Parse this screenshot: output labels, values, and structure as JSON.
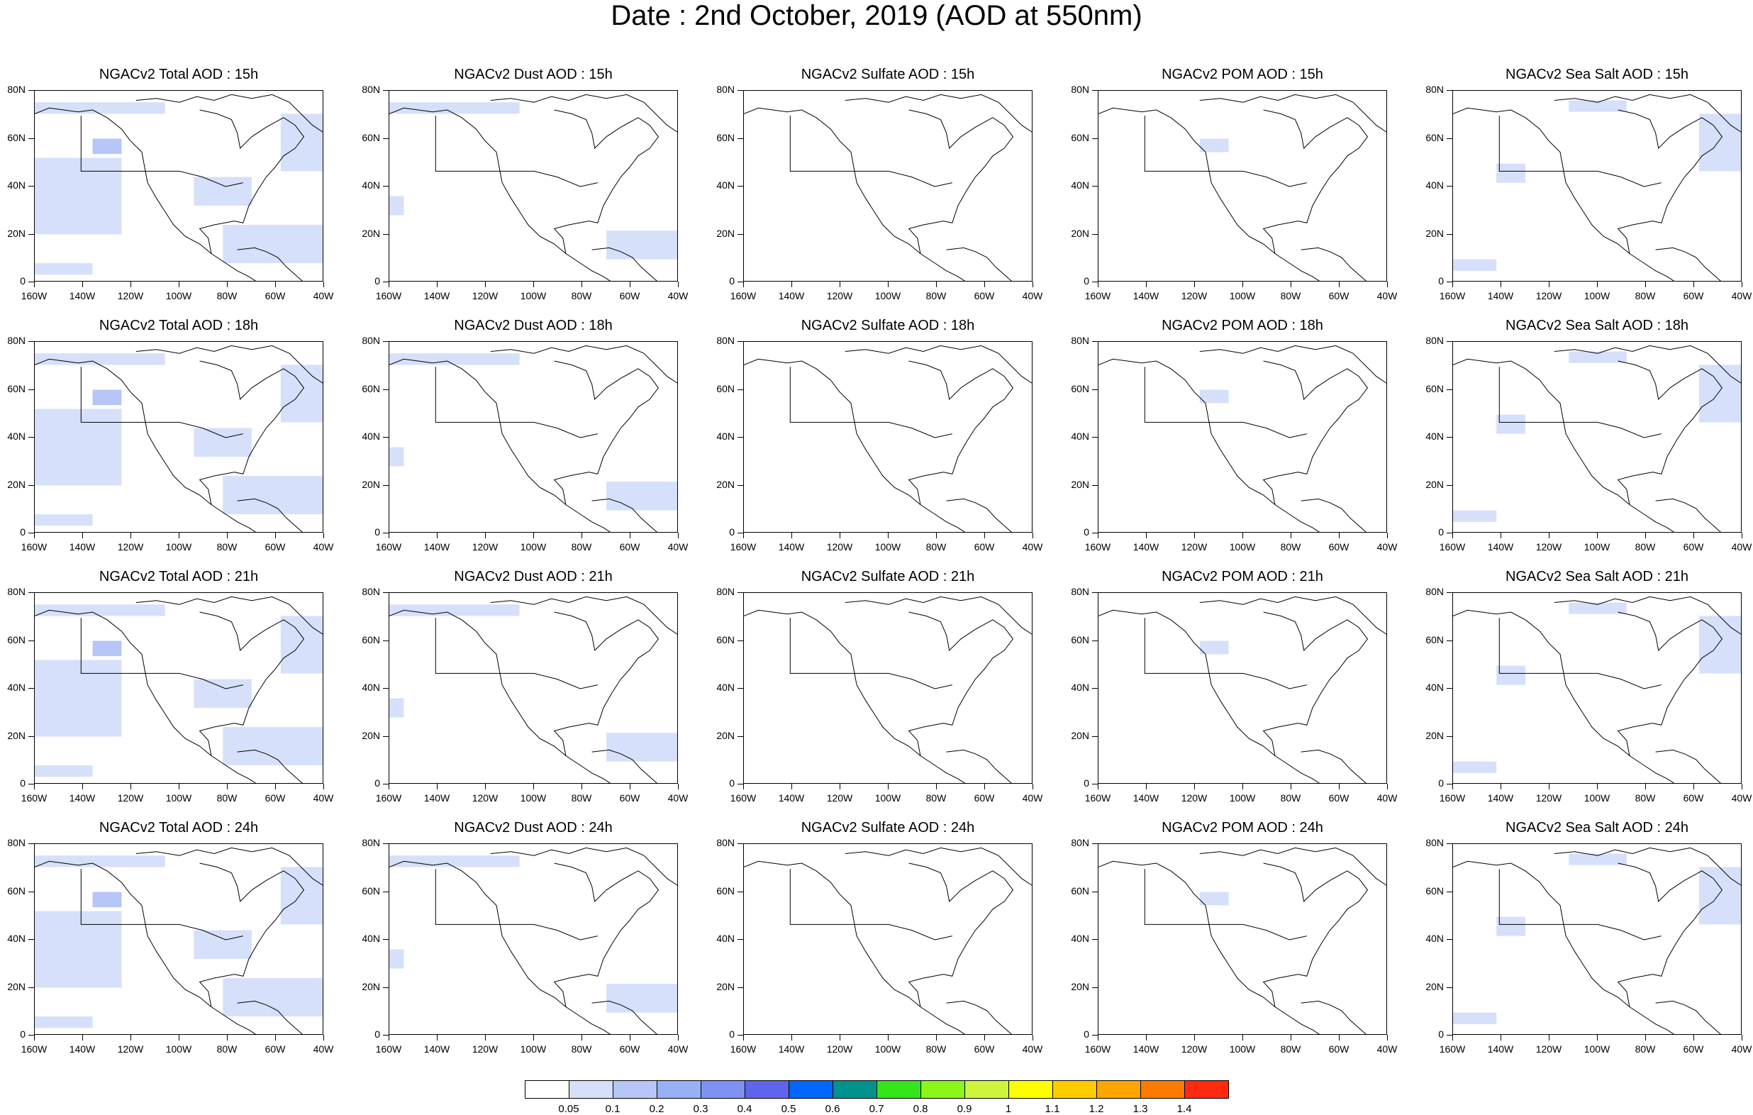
{
  "title": "Date : 2nd October, 2019 (AOD at 550nm)",
  "lat_labels": [
    "80N",
    "60N",
    "40N",
    "20N",
    "0"
  ],
  "lon_labels": [
    "160W",
    "140W",
    "120W",
    "100W",
    "80W",
    "60W",
    "40W"
  ],
  "panels": [
    [
      "NGACv2 Total AOD : 15h",
      "NGACv2 Dust AOD : 15h",
      "NGACv2 Sulfate AOD : 15h",
      "NGACv2 POM AOD : 15h",
      "NGACv2 Sea Salt AOD : 15h"
    ],
    [
      "NGACv2 Total AOD : 18h",
      "NGACv2 Dust AOD : 18h",
      "NGACv2 Sulfate AOD : 18h",
      "NGACv2 POM AOD : 18h",
      "NGACv2 Sea Salt AOD : 18h"
    ],
    [
      "NGACv2 Total AOD : 21h",
      "NGACv2 Dust AOD : 21h",
      "NGACv2 Sulfate AOD : 21h",
      "NGACv2 POM AOD : 21h",
      "NGACv2 Sea Salt AOD : 21h"
    ],
    [
      "NGACv2 Total AOD : 24h",
      "NGACv2 Dust AOD : 24h",
      "NGACv2 Sulfate AOD : 24h",
      "NGACv2 POM AOD : 24h",
      "NGACv2 Sea Salt  AOD : 24h"
    ]
  ],
  "colorbar": {
    "labels": [
      "0.05",
      "0.1",
      "0.2",
      "0.3",
      "0.4",
      "0.5",
      "0.6",
      "0.7",
      "0.8",
      "0.9",
      "1",
      "1.1",
      "1.2",
      "1.3",
      "1.4"
    ],
    "colors": [
      "#ffffff",
      "#d6e0fa",
      "#b5c6f7",
      "#98b0f6",
      "#7d92f3",
      "#5f64ec",
      "#0066ff",
      "#00928c",
      "#33e61a",
      "#8cf51a",
      "#cdf53c",
      "#ffff00",
      "#ffcc00",
      "#ffa500",
      "#ff7a00",
      "#ff2a10"
    ]
  }
}
